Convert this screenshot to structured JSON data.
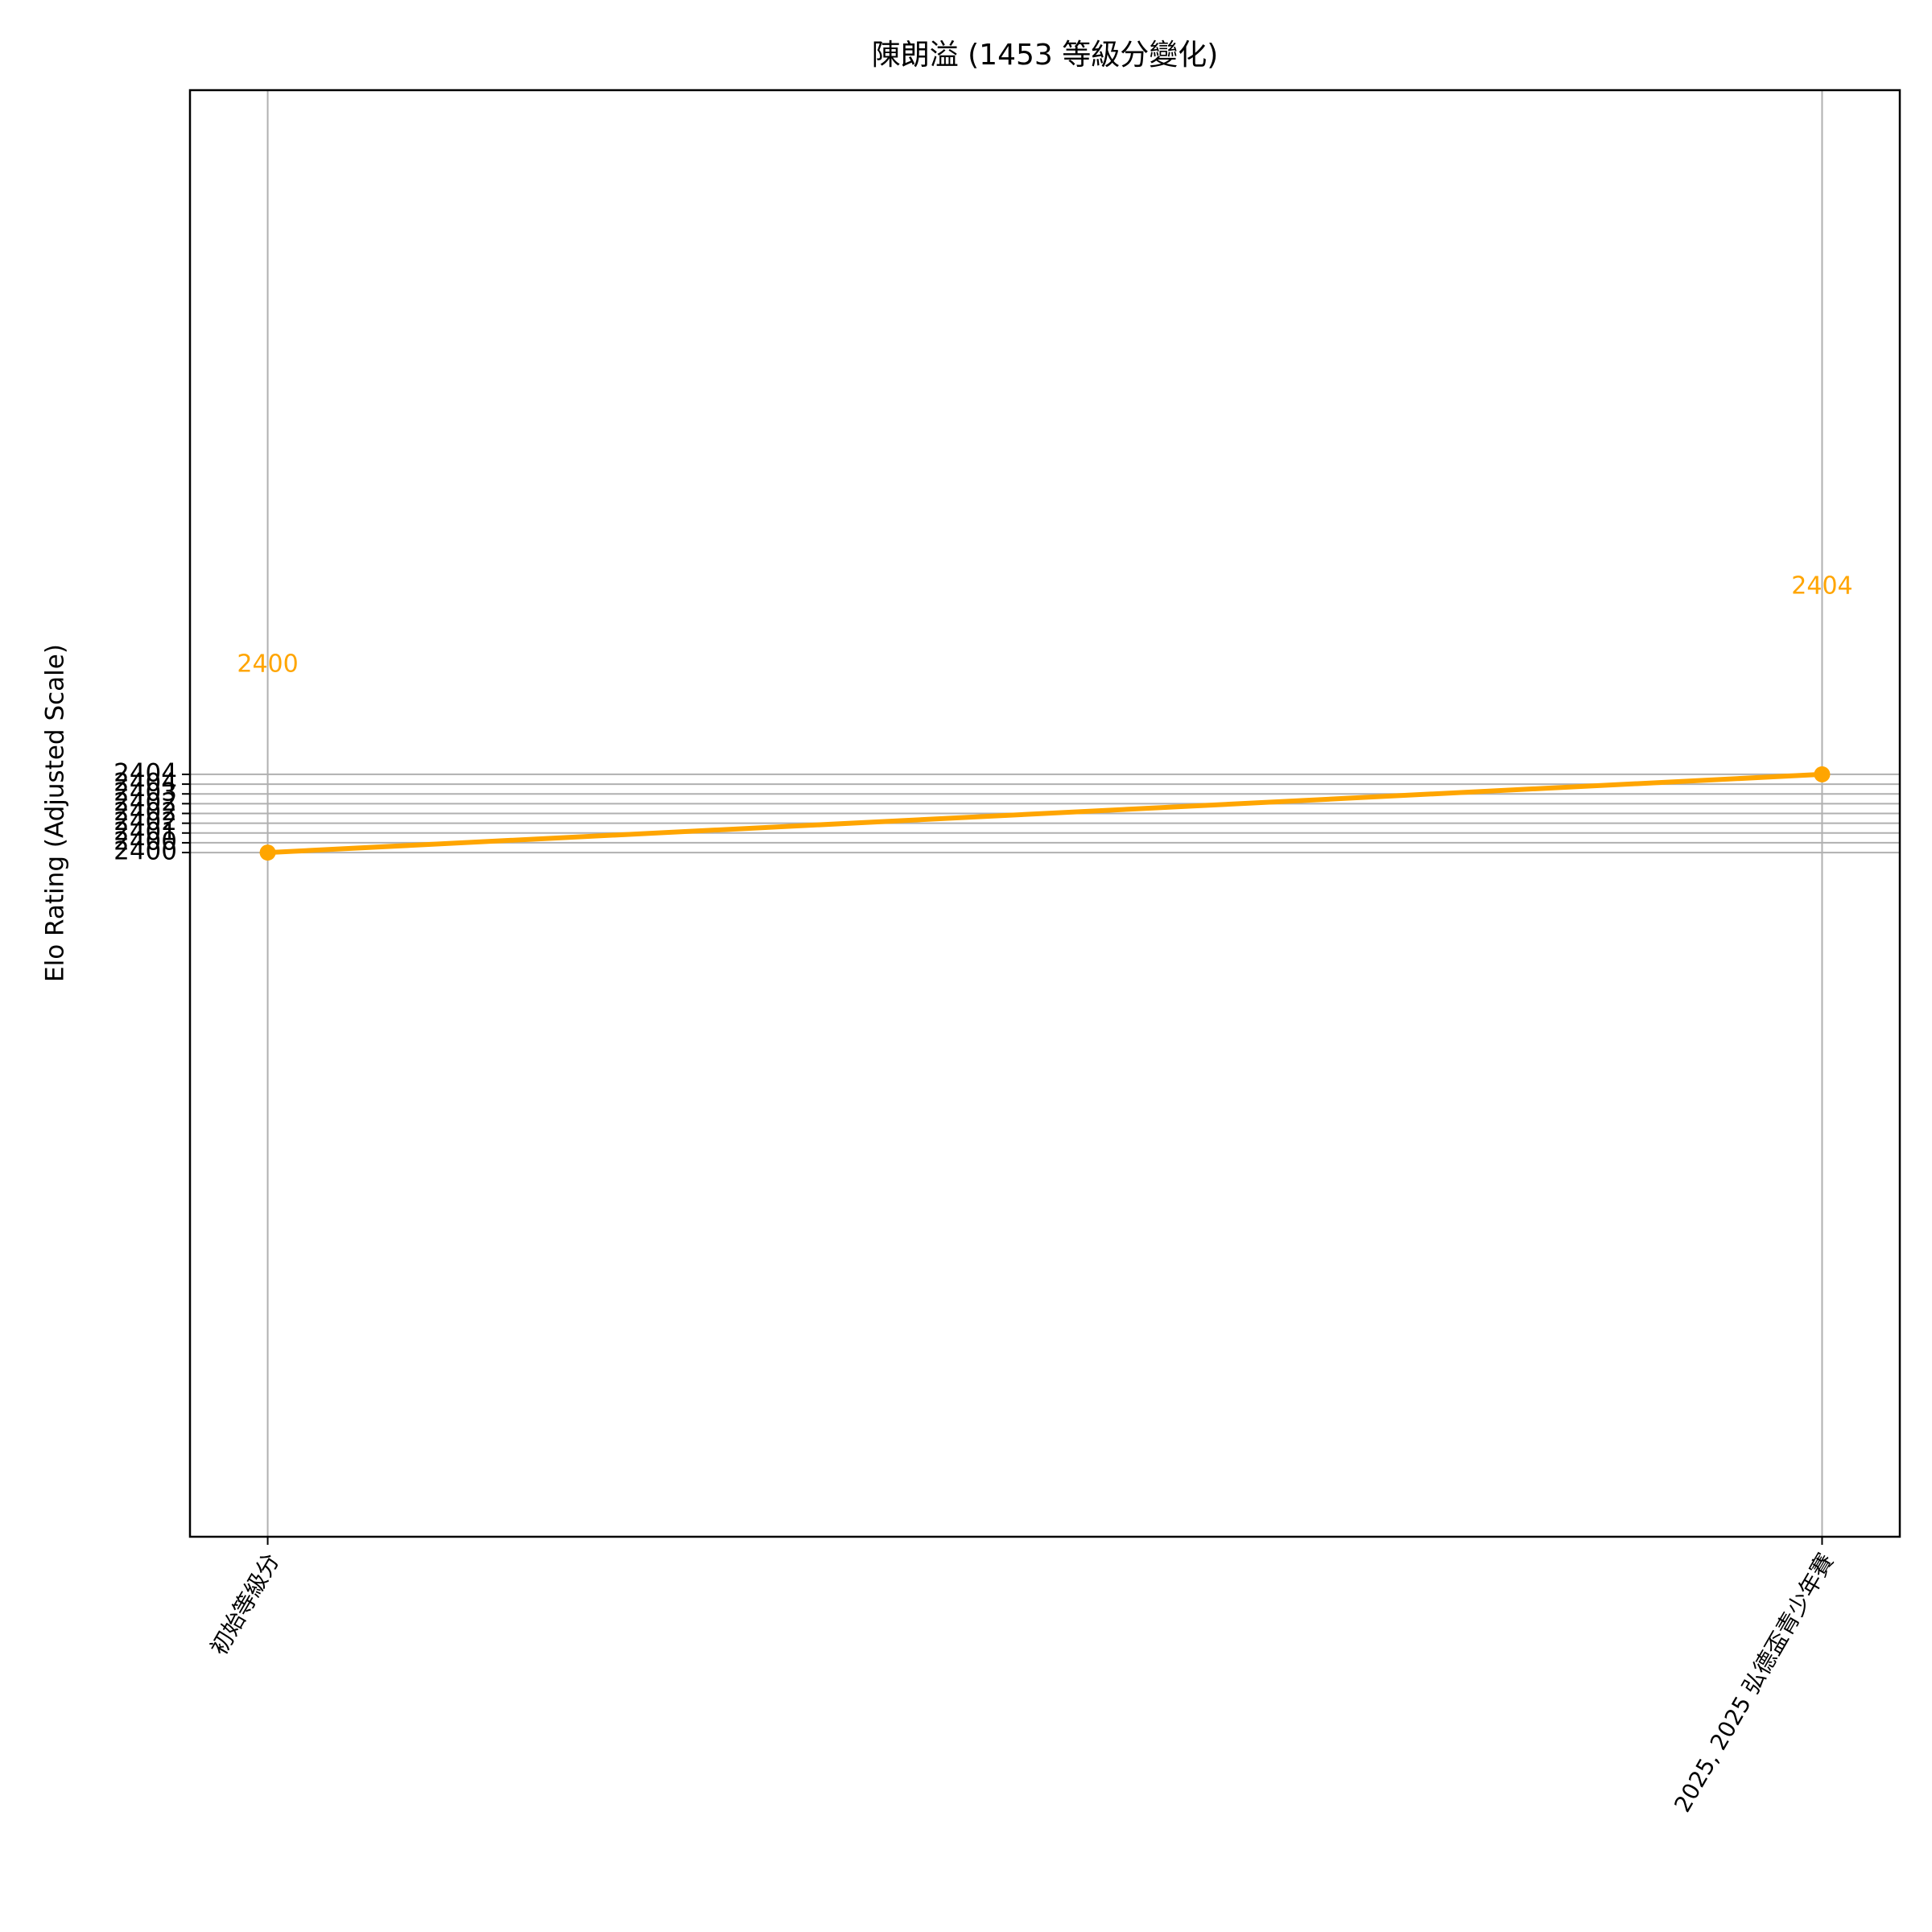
{
  "chart_data": {
    "type": "line",
    "title": "陳朗溢 (1453 等級分變化)",
    "y_label": "Elo Rating (Adjusted Scale)",
    "categories": [
      "初始等級分",
      "2025, 2025 弘德盃青少年賽"
    ],
    "series": [
      {
        "name": "Elo",
        "color": "#ffa500",
        "values": [
          2400,
          2404
        ]
      }
    ],
    "ylim": [
      2365,
      2439
    ],
    "yticks": [
      2400,
      {
        "value": 2400.5,
        "label": "2400"
      },
      2401,
      {
        "value": 2401.5,
        "label": "2402"
      },
      2402,
      {
        "value": 2402.5,
        "label": "2402"
      },
      2403,
      {
        "value": 2403.5,
        "label": "2404"
      },
      2404
    ],
    "grid": true
  }
}
